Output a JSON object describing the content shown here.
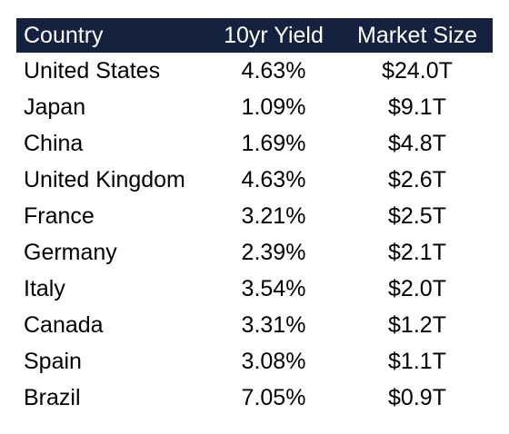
{
  "chart_data": {
    "type": "table",
    "columns": [
      "Country",
      "10yr Yield",
      "Market Size"
    ],
    "rows": [
      [
        "United States",
        "4.63%",
        "$24.0T"
      ],
      [
        "Japan",
        "1.09%",
        "$9.1T"
      ],
      [
        "China",
        "1.69%",
        "$4.8T"
      ],
      [
        "United Kingdom",
        "4.63%",
        "$2.6T"
      ],
      [
        "France",
        "3.21%",
        "$2.5T"
      ],
      [
        "Germany",
        "2.39%",
        "$2.1T"
      ],
      [
        "Italy",
        "3.54%",
        "$2.0T"
      ],
      [
        "Canada",
        "3.31%",
        "$1.2T"
      ],
      [
        "Spain",
        "3.08%",
        "$1.1T"
      ],
      [
        "Brazil",
        "7.05%",
        "$0.9T"
      ]
    ],
    "header_bg_color": "#14223f",
    "header_text_color": "#ffffff"
  }
}
